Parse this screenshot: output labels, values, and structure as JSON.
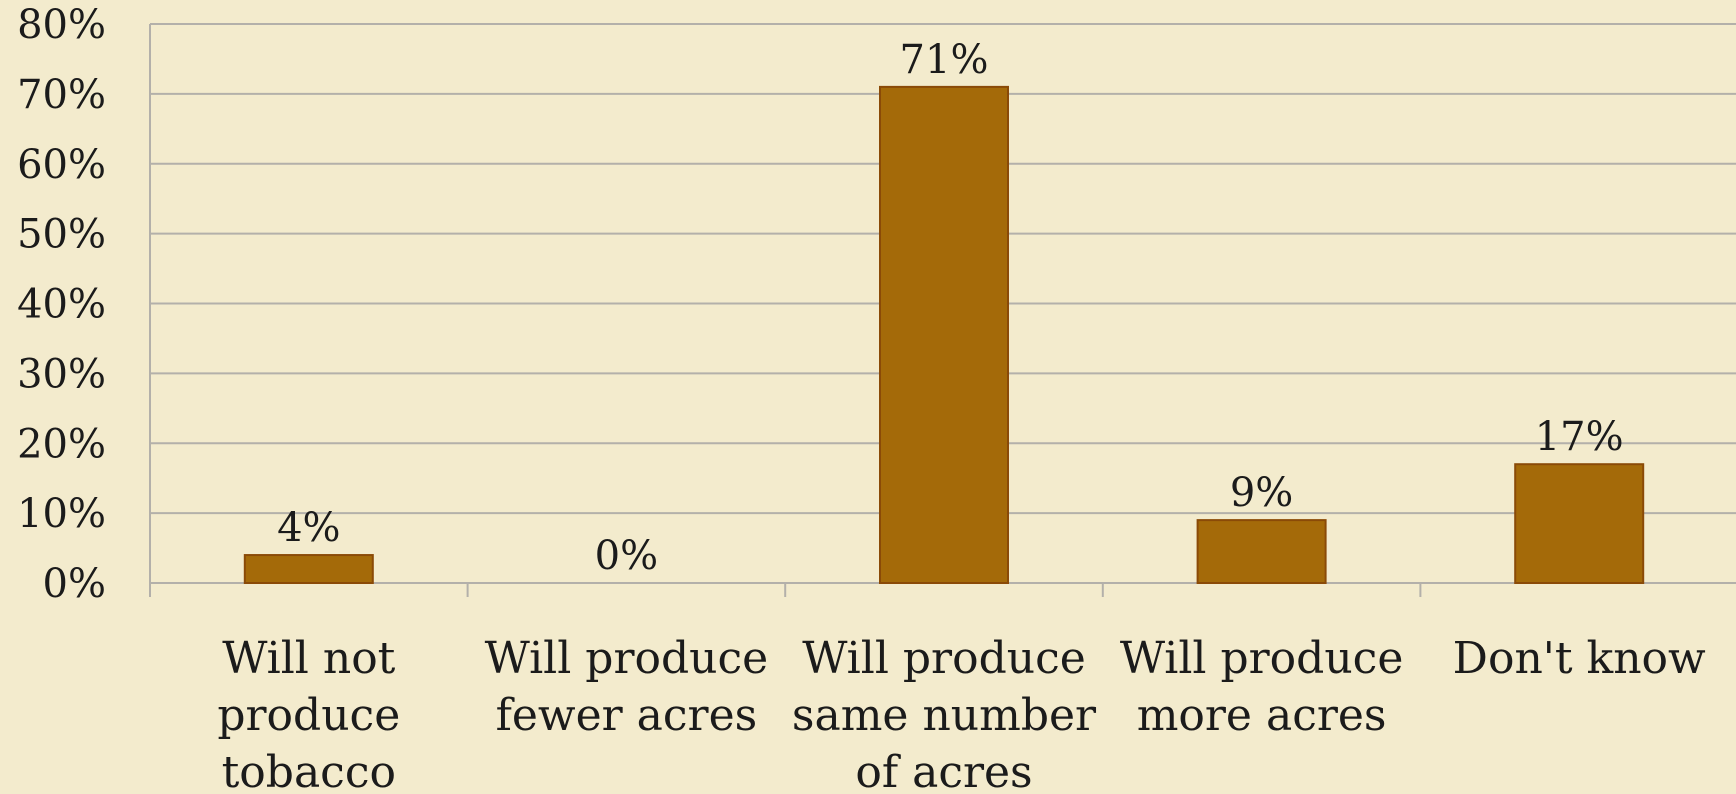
{
  "colors": {
    "background": "#f3ebcd",
    "bar_fill": "#a46a09",
    "bar_stroke": "#8a4a07",
    "grid": "#b3b0aa",
    "text": "#1b1b1b"
  },
  "chart_data": {
    "type": "bar",
    "title": "",
    "xlabel": "",
    "ylabel": "",
    "ylim": [
      0,
      80
    ],
    "grid": true,
    "y_ticks": [
      "0%",
      "10%",
      "20%",
      "30%",
      "40%",
      "50%",
      "60%",
      "70%",
      "80%"
    ],
    "y_tick_values": [
      0,
      10,
      20,
      30,
      40,
      50,
      60,
      70,
      80
    ],
    "categories": [
      [
        "Will not",
        "produce",
        "tobacco"
      ],
      [
        "Will produce",
        "fewer acres"
      ],
      [
        "Will produce",
        "same number",
        "of acres"
      ],
      [
        "Will produce",
        "more acres"
      ],
      [
        "Don't know"
      ]
    ],
    "values": [
      4,
      0,
      71,
      9,
      17
    ],
    "data_labels": [
      "4%",
      "0%",
      "71%",
      "9%",
      "17%"
    ]
  }
}
